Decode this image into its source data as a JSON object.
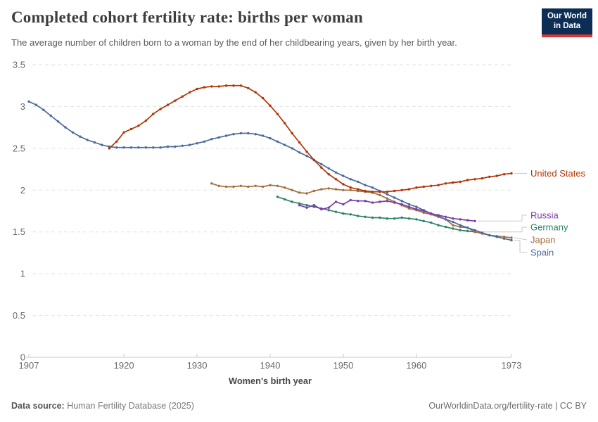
{
  "header": {
    "title": "Completed cohort fertility rate: births per woman",
    "subtitle": "The average number of children born to a woman by the end of her childbearing years, given by her birth year.",
    "logo_line1": "Our World",
    "logo_line2": "in Data",
    "logo_bg_color": "#0d2e54",
    "logo_bar_color": "#e0362c"
  },
  "chart_data": {
    "type": "line",
    "title": "Completed cohort fertility rate: births per woman",
    "xlabel": "Women's birth year",
    "ylabel": "",
    "x_ticks": [
      1907,
      1920,
      1930,
      1940,
      1950,
      1960,
      1973
    ],
    "y_ticks": [
      0,
      0.5,
      1,
      1.5,
      2,
      2.5,
      3,
      3.5
    ],
    "xlim": [
      1907,
      1973
    ],
    "ylim": [
      0,
      3.5
    ],
    "grid": "horizontal dashed",
    "legend_position": "end-of-line labels, right side",
    "marker": "point",
    "series": [
      {
        "name": "Germany",
        "color": "#2C8465",
        "start_year": 1941,
        "values": [
          1.92,
          1.89,
          1.86,
          1.84,
          1.82,
          1.8,
          1.78,
          1.76,
          1.74,
          1.72,
          1.71,
          1.69,
          1.68,
          1.67,
          1.67,
          1.66,
          1.66,
          1.67,
          1.66,
          1.65,
          1.63,
          1.61,
          1.58,
          1.56,
          1.54,
          1.52,
          1.51,
          1.5
        ]
      },
      {
        "name": "Japan",
        "color": "#A1703C",
        "start_year": 1932,
        "values": [
          2.08,
          2.05,
          2.04,
          2.04,
          2.05,
          2.04,
          2.05,
          2.04,
          2.06,
          2.05,
          2.03,
          2.0,
          1.97,
          1.96,
          1.99,
          2.01,
          2.02,
          2.01,
          2.0,
          2.0,
          1.99,
          1.98,
          1.97,
          1.94,
          1.9,
          1.86,
          1.82,
          1.78,
          1.76,
          1.73,
          1.71,
          1.68,
          1.65,
          1.58,
          1.56,
          1.55,
          1.5,
          1.48,
          1.46,
          1.45,
          1.44,
          1.43
        ]
      },
      {
        "name": "Spain",
        "color": "#4C6A9C",
        "start_year": 1907,
        "values": [
          3.06,
          3.02,
          2.96,
          2.89,
          2.82,
          2.75,
          2.69,
          2.64,
          2.6,
          2.57,
          2.54,
          2.52,
          2.51,
          2.51,
          2.51,
          2.51,
          2.51,
          2.51,
          2.51,
          2.52,
          2.52,
          2.53,
          2.54,
          2.56,
          2.58,
          2.61,
          2.63,
          2.65,
          2.67,
          2.68,
          2.68,
          2.67,
          2.65,
          2.62,
          2.58,
          2.54,
          2.5,
          2.45,
          2.41,
          2.36,
          2.31,
          2.26,
          2.21,
          2.17,
          2.13,
          2.1,
          2.06,
          2.03,
          1.99,
          1.95,
          1.91,
          1.87,
          1.83,
          1.8,
          1.76,
          1.72,
          1.69,
          1.65,
          1.62,
          1.58,
          1.55,
          1.52,
          1.49,
          1.46,
          1.44,
          1.42,
          1.4
        ]
      },
      {
        "name": "Russia",
        "color": "#7B3EA8",
        "start_year": 1944,
        "values": [
          1.82,
          1.79,
          1.82,
          1.77,
          1.79,
          1.86,
          1.83,
          1.88,
          1.87,
          1.87,
          1.85,
          1.86,
          1.87,
          1.85,
          1.83,
          1.8,
          1.77,
          1.75,
          1.72,
          1.7,
          1.68,
          1.66,
          1.65,
          1.64,
          1.63
        ]
      },
      {
        "name": "United States",
        "color": "#B13507",
        "start_year": 1918,
        "values": [
          2.5,
          2.58,
          2.69,
          2.73,
          2.77,
          2.83,
          2.91,
          2.97,
          3.02,
          3.07,
          3.12,
          3.17,
          3.21,
          3.23,
          3.24,
          3.24,
          3.25,
          3.25,
          3.25,
          3.22,
          3.17,
          3.1,
          3.01,
          2.91,
          2.8,
          2.68,
          2.57,
          2.46,
          2.36,
          2.27,
          2.19,
          2.13,
          2.07,
          2.03,
          2.01,
          1.99,
          1.98,
          1.98,
          1.98,
          1.99,
          2.0,
          2.01,
          2.03,
          2.04,
          2.05,
          2.06,
          2.08,
          2.09,
          2.1,
          2.12,
          2.13,
          2.14,
          2.16,
          2.17,
          2.19,
          2.2
        ]
      }
    ]
  },
  "footer": {
    "datasource_label": "Data source:",
    "datasource": "Human Fertility Database (2025)",
    "attribution": "OurWorldinData.org/fertility-rate | CC BY"
  }
}
